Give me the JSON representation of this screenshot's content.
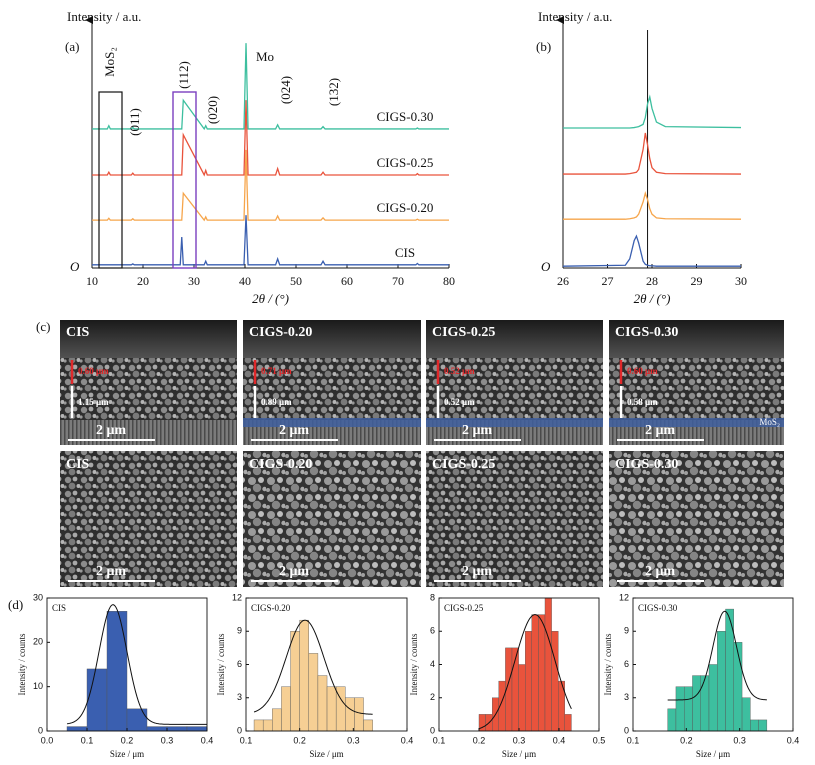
{
  "chart_data": [
    {
      "type": "line",
      "panel_label": "(a)",
      "y_label": "Intensity / a.u.",
      "x_label": "2θ / (°)",
      "origin_label": "O",
      "annotations": [
        "MoS₂",
        "(011)",
        "(112)",
        "(020)",
        "Mo",
        "(024)",
        "(132)"
      ],
      "x": [
        10,
        13.0,
        13.3,
        13.6,
        17.7,
        18,
        18.3,
        27.3,
        27.6,
        27.9,
        32.0,
        32.3,
        32.6,
        39.8,
        40.2,
        40.6,
        46.0,
        46.4,
        46.8,
        54.9,
        55.3,
        55.7,
        73.5,
        73.8,
        74.1,
        80
      ],
      "xlim": [
        10,
        80
      ],
      "xticks": [
        10,
        20,
        30,
        40,
        50,
        60,
        70,
        80
      ],
      "ylim": [
        0,
        5
      ],
      "series": [
        {
          "name": "CIS",
          "color": "#3a5fb0",
          "values": [
            0.07,
            0.07,
            0.07,
            0.07,
            0.07,
            0.09,
            0.07,
            0.07,
            0.68,
            0.07,
            0.07,
            0.15,
            0.07,
            0.07,
            1.16,
            0.07,
            0.07,
            0.2,
            0.07,
            0.07,
            0.15,
            0.07,
            0.07,
            0.1,
            0.07,
            0.07
          ]
        },
        {
          "name": "CIGS-0.20",
          "color": "#f6a54b",
          "values": [
            1.05,
            1.05,
            1.09,
            1.05,
            1.05,
            1.08,
            1.05,
            1.05,
            1.05,
            1.64,
            1.05,
            1.12,
            1.05,
            1.05,
            2.59,
            1.05,
            1.05,
            1.14,
            1.05,
            1.05,
            1.1,
            1.05,
            1.05,
            1.07,
            1.05,
            1.05
          ]
        },
        {
          "name": "CIGS-0.25",
          "color": "#e9533c",
          "values": [
            2.04,
            2.04,
            2.1,
            2.04,
            2.04,
            2.08,
            2.04,
            2.04,
            2.04,
            2.92,
            2.04,
            2.14,
            2.04,
            2.04,
            3.68,
            2.04,
            2.04,
            2.18,
            2.04,
            2.04,
            2.1,
            2.04,
            2.04,
            2.07,
            2.04,
            2.04
          ]
        },
        {
          "name": "CIGS-0.30",
          "color": "#3dbf9f",
          "values": [
            3.05,
            3.05,
            3.12,
            3.05,
            3.05,
            3.08,
            3.05,
            3.05,
            3.05,
            3.68,
            3.05,
            3.12,
            3.05,
            3.05,
            4.93,
            3.05,
            3.05,
            3.14,
            3.05,
            3.05,
            3.1,
            3.05,
            3.05,
            3.07,
            3.05,
            3.05
          ]
        }
      ]
    },
    {
      "type": "line",
      "panel_label": "(b)",
      "y_label": "Intensity / a.u.",
      "x_label": "2θ / (°)",
      "origin_label": "O",
      "x": [
        26,
        27.4,
        27.5,
        27.6,
        27.65,
        27.7,
        27.8,
        27.85,
        27.9,
        27.95,
        28.0,
        28.1,
        28.3,
        30
      ],
      "xlim": [
        26,
        30
      ],
      "xticks": [
        26,
        27,
        28,
        29,
        30
      ],
      "ylim": [
        0,
        5
      ],
      "marker_line_x": 27.9,
      "series": [
        {
          "color": "#3a5fb0",
          "values": [
            0.04,
            0.06,
            0.2,
            0.6,
            0.7,
            0.55,
            0.15,
            0.08,
            0.06,
            0.05,
            0.05,
            0.04,
            0.04,
            0.04
          ]
        },
        {
          "color": "#f6a54b",
          "values": [
            1.07,
            1.07,
            1.08,
            1.1,
            1.12,
            1.18,
            1.45,
            1.64,
            1.5,
            1.3,
            1.18,
            1.1,
            1.08,
            1.07
          ]
        },
        {
          "color": "#e9533c",
          "values": [
            2.06,
            2.06,
            2.07,
            2.09,
            2.1,
            2.16,
            2.6,
            2.96,
            2.7,
            2.4,
            2.2,
            2.1,
            2.07,
            2.06
          ]
        },
        {
          "color": "#3dbf9f",
          "values": [
            3.07,
            3.07,
            3.07,
            3.08,
            3.09,
            3.1,
            3.15,
            3.3,
            3.6,
            3.75,
            3.5,
            3.2,
            3.1,
            3.08
          ]
        }
      ]
    },
    {
      "type": "histogram",
      "panel_label": "(d)",
      "title": "CIS",
      "x_label": "Size / μm",
      "y_label": "Intensity / counts",
      "color": "#3a5fb0",
      "bins": [
        0.05,
        0.1,
        0.15,
        0.2,
        0.25,
        0.3,
        0.35,
        0.4
      ],
      "counts": [
        1,
        14,
        27,
        5,
        1,
        1,
        1
      ],
      "xlim": [
        0,
        0.4
      ],
      "xticks": [
        {
          "value": 0,
          "label": "0.0"
        },
        0.1,
        0.2,
        0.3,
        0.4
      ],
      "ylim": [
        0,
        30
      ],
      "yticks": [
        0,
        10,
        20,
        30
      ],
      "fit": {
        "center": 0.165,
        "sigma": 0.035,
        "amplitude": 27,
        "offset": 1.5
      }
    },
    {
      "type": "histogram",
      "title": "CIGS-0.20",
      "x_label": "Size / μm",
      "y_label": "Intensity / counts",
      "color": "#f6cf94",
      "bins": [
        0.115,
        0.132,
        0.149,
        0.166,
        0.183,
        0.2,
        0.217,
        0.234,
        0.251,
        0.268,
        0.285,
        0.302,
        0.319,
        0.336
      ],
      "counts": [
        1,
        1,
        2,
        4,
        9,
        10,
        7,
        5,
        4,
        4,
        3,
        3,
        1
      ],
      "xlim": [
        0.1,
        0.4
      ],
      "xticks": [
        0.1,
        0.2,
        0.3,
        0.4
      ],
      "ylim": [
        0,
        12
      ],
      "yticks": [
        0,
        3,
        6,
        9,
        12
      ],
      "fit": {
        "center": 0.21,
        "sigma": 0.035,
        "amplitude": 8.5,
        "offset": 1.5
      }
    },
    {
      "type": "histogram",
      "title": "CIGS-0.25",
      "x_label": "Size / μm",
      "y_label": "Intensity / counts",
      "color": "#e9533c",
      "bins": [
        0.2,
        0.2165,
        0.233,
        0.2495,
        0.266,
        0.2825,
        0.299,
        0.3155,
        0.332,
        0.3485,
        0.365,
        0.3815,
        0.398,
        0.4145,
        0.431
      ],
      "counts": [
        1,
        1,
        2,
        3,
        5,
        5,
        4,
        6,
        7,
        7,
        8,
        6,
        3,
        1
      ],
      "xlim": [
        0.1,
        0.5
      ],
      "xticks": [
        0.1,
        0.2,
        0.3,
        0.4,
        0.5
      ],
      "ylim": [
        0,
        8
      ],
      "yticks": [
        0,
        2,
        4,
        6,
        8
      ],
      "fit": {
        "center": 0.34,
        "sigma": 0.05,
        "amplitude": 7,
        "offset": 0
      }
    },
    {
      "type": "histogram",
      "title": "CIGS-0.30",
      "x_label": "Size / μm",
      "y_label": "Intensity / counts",
      "color": "#3dbf9f",
      "bins": [
        0.165,
        0.1805,
        0.196,
        0.2115,
        0.227,
        0.2425,
        0.258,
        0.2735,
        0.289,
        0.3045,
        0.32,
        0.3355,
        0.351
      ],
      "counts": [
        2,
        4,
        4,
        5,
        5,
        6,
        9,
        11,
        8,
        3,
        1,
        1
      ],
      "xlim": [
        0.1,
        0.4
      ],
      "xticks": [
        0.1,
        0.2,
        0.3,
        0.4
      ],
      "ylim": [
        0,
        12
      ],
      "yticks": [
        0,
        3,
        6,
        9,
        12
      ],
      "fit": {
        "center": 0.272,
        "sigma": 0.022,
        "amplitude": 8,
        "offset": 2.8
      }
    }
  ],
  "images": {
    "panel_label": "(c)",
    "layer_label": "MoS₂",
    "cross_section": [
      {
        "label": "CIS",
        "thickness_top": "0.60 μm",
        "thickness_bottom": "1.15 μm",
        "scale": "2 μm"
      },
      {
        "label": "CIGS-0.20",
        "thickness_top": "0.71 μm",
        "thickness_bottom": "0.89 μm",
        "scale": "2 μm"
      },
      {
        "label": "CIGS-0.25",
        "thickness_top": "0.52 μm",
        "thickness_bottom": "0.52 μm",
        "scale": "2 μm"
      },
      {
        "label": "CIGS-0.30",
        "thickness_top": "0.60 μm",
        "thickness_bottom": "0.58 μm",
        "scale": "2 μm"
      }
    ],
    "surface": [
      {
        "label": "CIS",
        "scale": "2 μm"
      },
      {
        "label": "CIGS-0.20",
        "scale": "2 μm"
      },
      {
        "label": "CIGS-0.25",
        "scale": "2 μm"
      },
      {
        "label": "CIGS-0.30",
        "scale": "2 μm"
      }
    ]
  }
}
